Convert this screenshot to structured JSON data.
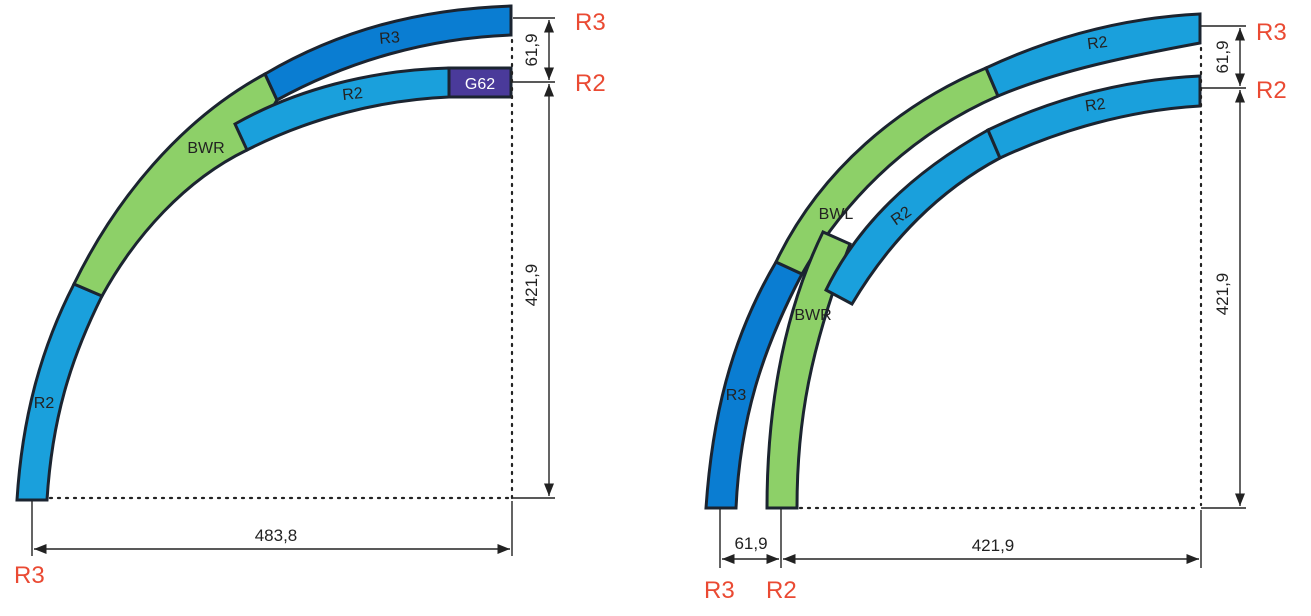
{
  "colors": {
    "R2": "#1aa0dc",
    "R3": "#0a7dd2",
    "BWR": "#8dd068",
    "BWL": "#8dd068",
    "G62": "#4a3a9a",
    "outline": "#1b2430",
    "accent_red": "#ea4a33",
    "dimension": "#222222"
  },
  "left_layout": {
    "track_labels": {
      "r3_top": "R3",
      "r2_top": "R2",
      "g62": "G62",
      "bwr": "BWR",
      "r2_lower": "R2"
    },
    "dimensions": {
      "spacing": "61,9",
      "vertical": "421,9",
      "horizontal": "483,8"
    },
    "radius_markers": {
      "top_r3": "R3",
      "top_r2": "R2",
      "bottom_r3": "R3"
    }
  },
  "right_layout": {
    "track_labels": {
      "r2_outer": "R2",
      "r2_inner": "R2",
      "bwl": "BWL",
      "r2_mid": "R2",
      "bwr": "BWR",
      "r3_lower": "R3"
    },
    "dimensions": {
      "spacing_vertical": "61,9",
      "vertical": "421,9",
      "spacing_horizontal": "61,9",
      "horizontal": "421,9"
    },
    "radius_markers": {
      "top_r3": "R3",
      "top_r2": "R2",
      "bottom_r3": "R3",
      "bottom_r2": "R2"
    }
  }
}
